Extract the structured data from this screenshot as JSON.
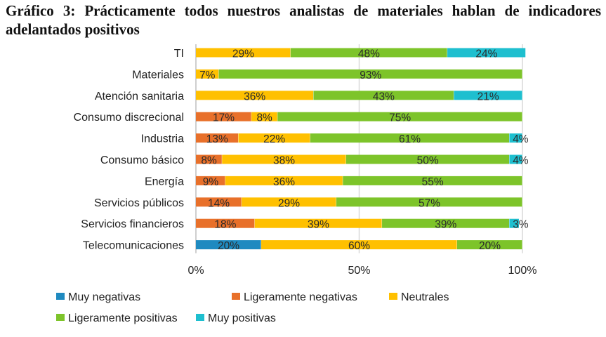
{
  "title": "Gráfico 3: Prácticamente todos nuestros analistas de materiales hablan de indicadores adelantados positivos",
  "chart_data": {
    "type": "bar",
    "orientation": "horizontal",
    "stacked": "100%",
    "title": "Gráfico 3: Prácticamente todos nuestros analistas de materiales hablan de indicadores adelantados positivos",
    "xlabel": "",
    "ylabel": "",
    "xlim": [
      0,
      100
    ],
    "x_ticks": [
      "0%",
      "50%",
      "100%"
    ],
    "grid": "vertical at 50% and 100%",
    "legend_position": "bottom",
    "categories": [
      "TI",
      "Materiales",
      "Atención sanitaria",
      "Consumo discrecional",
      "Industria",
      "Consumo básico",
      "Energía",
      "Servicios públicos",
      "Servicios financieros",
      "Telecomunicaciones"
    ],
    "series": [
      {
        "name": "Muy negativas",
        "color": "#1f8ac0",
        "values": [
          0,
          0,
          0,
          0,
          0,
          0,
          0,
          0,
          0,
          20
        ]
      },
      {
        "name": "Ligeramente negativas",
        "color": "#e8702a",
        "values": [
          0,
          0,
          0,
          17,
          13,
          8,
          9,
          14,
          18,
          0
        ]
      },
      {
        "name": "Neutrales",
        "color": "#ffc000",
        "values": [
          29,
          7,
          36,
          8,
          22,
          38,
          36,
          29,
          39,
          60
        ]
      },
      {
        "name": "Ligeramente positivas",
        "color": "#7dc42a",
        "values": [
          48,
          93,
          43,
          75,
          61,
          50,
          55,
          57,
          39,
          20
        ]
      },
      {
        "name": "Muy positivas",
        "color": "#1ebfcf",
        "values": [
          24,
          0,
          21,
          0,
          4,
          4,
          0,
          0,
          3,
          0
        ]
      }
    ]
  }
}
